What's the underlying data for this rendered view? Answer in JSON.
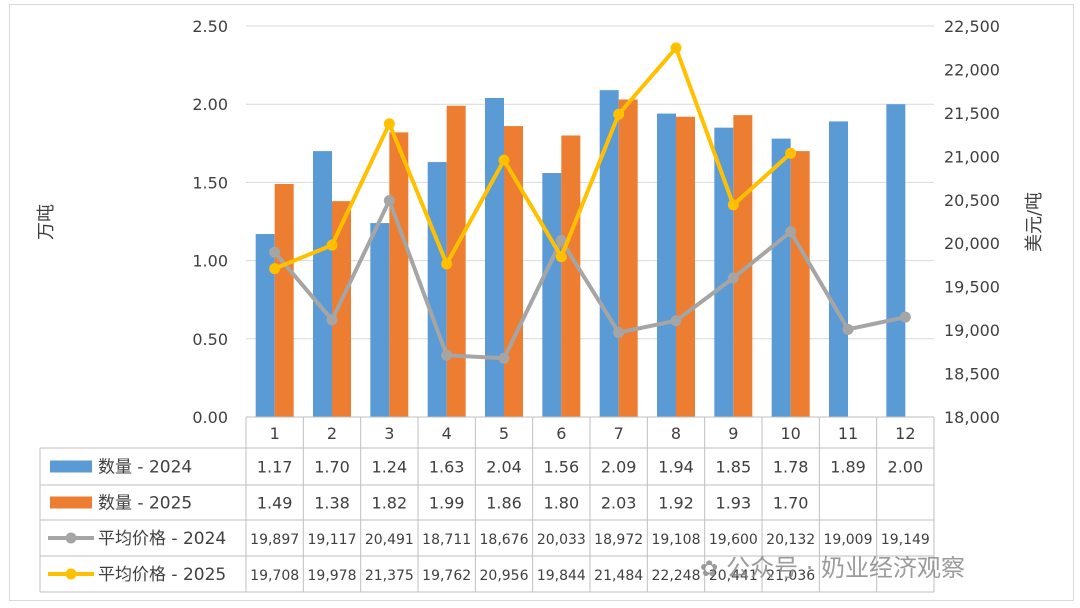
{
  "chart_data": {
    "type": "bar+line",
    "categories": [
      "1",
      "2",
      "3",
      "4",
      "5",
      "6",
      "7",
      "8",
      "9",
      "10",
      "11",
      "12"
    ],
    "y_left_label": "万吨",
    "y_right_label": "美元/吨",
    "y_left_range": [
      0,
      2.5
    ],
    "y_left_ticks": [
      "0.00",
      "0.50",
      "1.00",
      "1.50",
      "2.00",
      "2.50"
    ],
    "y_right_range": [
      18000,
      22500
    ],
    "y_right_ticks": [
      "18,000",
      "18,500",
      "19,000",
      "19,500",
      "20,000",
      "20,500",
      "21,000",
      "21,500",
      "22,000",
      "22,500"
    ],
    "grid": true,
    "legend_placement": "data-table",
    "series": [
      {
        "name": "数量 - 2024",
        "kind": "bar",
        "axis": "left",
        "color": "#5b9bd5",
        "values": [
          1.17,
          1.7,
          1.24,
          1.63,
          2.04,
          1.56,
          2.09,
          1.94,
          1.85,
          1.78,
          1.89,
          2.0
        ],
        "labels": [
          "1.17",
          "1.70",
          "1.24",
          "1.63",
          "2.04",
          "1.56",
          "2.09",
          "1.94",
          "1.85",
          "1.78",
          "1.89",
          "2.00"
        ]
      },
      {
        "name": "数量 - 2025",
        "kind": "bar",
        "axis": "left",
        "color": "#ed7d31",
        "values": [
          1.49,
          1.38,
          1.82,
          1.99,
          1.86,
          1.8,
          2.03,
          1.92,
          1.93,
          1.7,
          null,
          null
        ],
        "labels": [
          "1.49",
          "1.38",
          "1.82",
          "1.99",
          "1.86",
          "1.80",
          "2.03",
          "1.92",
          "1.93",
          "1.70",
          "",
          ""
        ]
      },
      {
        "name": "平均价格 - 2024",
        "kind": "line",
        "axis": "right",
        "color": "#a5a5a5",
        "values": [
          19897,
          19117,
          20491,
          18711,
          18676,
          20033,
          18972,
          19108,
          19600,
          20132,
          19009,
          19149
        ],
        "labels": [
          "19,897",
          "19,117",
          "20,491",
          "18,711",
          "18,676",
          "20,033",
          "18,972",
          "19,108",
          "19,600",
          "20,132",
          "19,009",
          "19,149"
        ]
      },
      {
        "name": "平均价格 - 2025",
        "kind": "line",
        "axis": "right",
        "color": "#ffc000",
        "values": [
          19708,
          19978,
          21375,
          19762,
          20956,
          19844,
          21484,
          22248,
          20441,
          21036,
          null,
          null
        ],
        "labels": [
          "19,708",
          "19,978",
          "21,375",
          "19,762",
          "20,956",
          "19,844",
          "21,484",
          "22,248",
          "20,441",
          "21,036",
          "",
          ""
        ]
      }
    ]
  },
  "watermark": "公众号 · 奶业经济观察"
}
